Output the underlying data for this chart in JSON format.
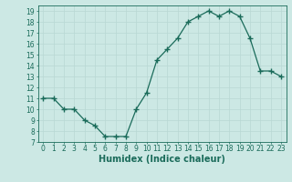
{
  "x": [
    0,
    1,
    2,
    3,
    4,
    5,
    6,
    7,
    8,
    9,
    10,
    11,
    12,
    13,
    14,
    15,
    16,
    17,
    18,
    19,
    20,
    21,
    22,
    23
  ],
  "y": [
    11,
    11,
    10,
    10,
    9,
    8.5,
    7.5,
    7.5,
    7.5,
    10,
    11.5,
    14.5,
    15.5,
    16.5,
    18,
    18.5,
    19,
    18.5,
    19,
    18.5,
    16.5,
    13.5,
    13.5,
    13
  ],
  "line_color": "#1a6b5a",
  "marker": "+",
  "marker_size": 4,
  "bg_color": "#cce8e4",
  "grid_color_major": "#b8d8d4",
  "grid_color_minor": "#d8ecea",
  "xlabel": "Humidex (Indice chaleur)",
  "ylim": [
    7,
    19.5
  ],
  "xlim": [
    -0.5,
    23.5
  ],
  "yticks": [
    7,
    8,
    9,
    10,
    11,
    12,
    13,
    14,
    15,
    16,
    17,
    18,
    19
  ],
  "xticks": [
    0,
    1,
    2,
    3,
    4,
    5,
    6,
    7,
    8,
    9,
    10,
    11,
    12,
    13,
    14,
    15,
    16,
    17,
    18,
    19,
    20,
    21,
    22,
    23
  ],
  "tick_color": "#1a6b5a",
  "label_fontsize": 5.5,
  "xlabel_fontsize": 7,
  "xlabel_fontweight": "bold",
  "linewidth": 0.9,
  "marker_color": "#1a6b5a"
}
